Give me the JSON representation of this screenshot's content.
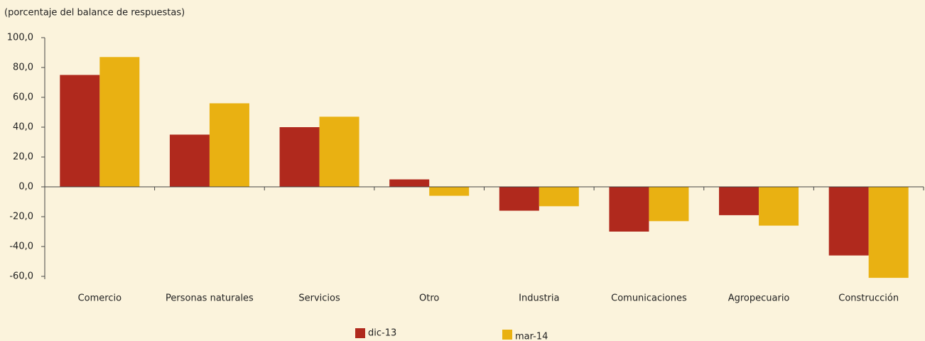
{
  "chart_data": {
    "type": "bar",
    "subtitle": "(porcentaje del balance de respuestas)",
    "categories": [
      "Comercio",
      "Personas naturales",
      "Servicios",
      "Otro",
      "Industria",
      "Comunicaciones",
      "Agropecuario",
      "Construcción"
    ],
    "series": [
      {
        "name": "dic-13",
        "color": "#b0291d",
        "values": [
          75,
          35,
          40,
          5,
          -16,
          -30,
          -19,
          -46
        ]
      },
      {
        "name": "mar-14",
        "color": "#e9b112",
        "values": [
          87,
          56,
          47,
          -6,
          -13,
          -23,
          -26,
          -61
        ]
      }
    ],
    "ylim": [
      -60,
      100
    ],
    "yticks": [
      {
        "value": 100,
        "label": "100,0"
      },
      {
        "value": 80,
        "label": "80,0"
      },
      {
        "value": 60,
        "label": "60,0"
      },
      {
        "value": 40,
        "label": "40,0"
      },
      {
        "value": 20,
        "label": "20,0"
      },
      {
        "value": 0,
        "label": "0,0"
      },
      {
        "value": -20,
        "label": "-20,0"
      },
      {
        "value": -40,
        "label": "-40,0"
      },
      {
        "value": -60,
        "label": "-60,0"
      }
    ],
    "grid": false
  }
}
